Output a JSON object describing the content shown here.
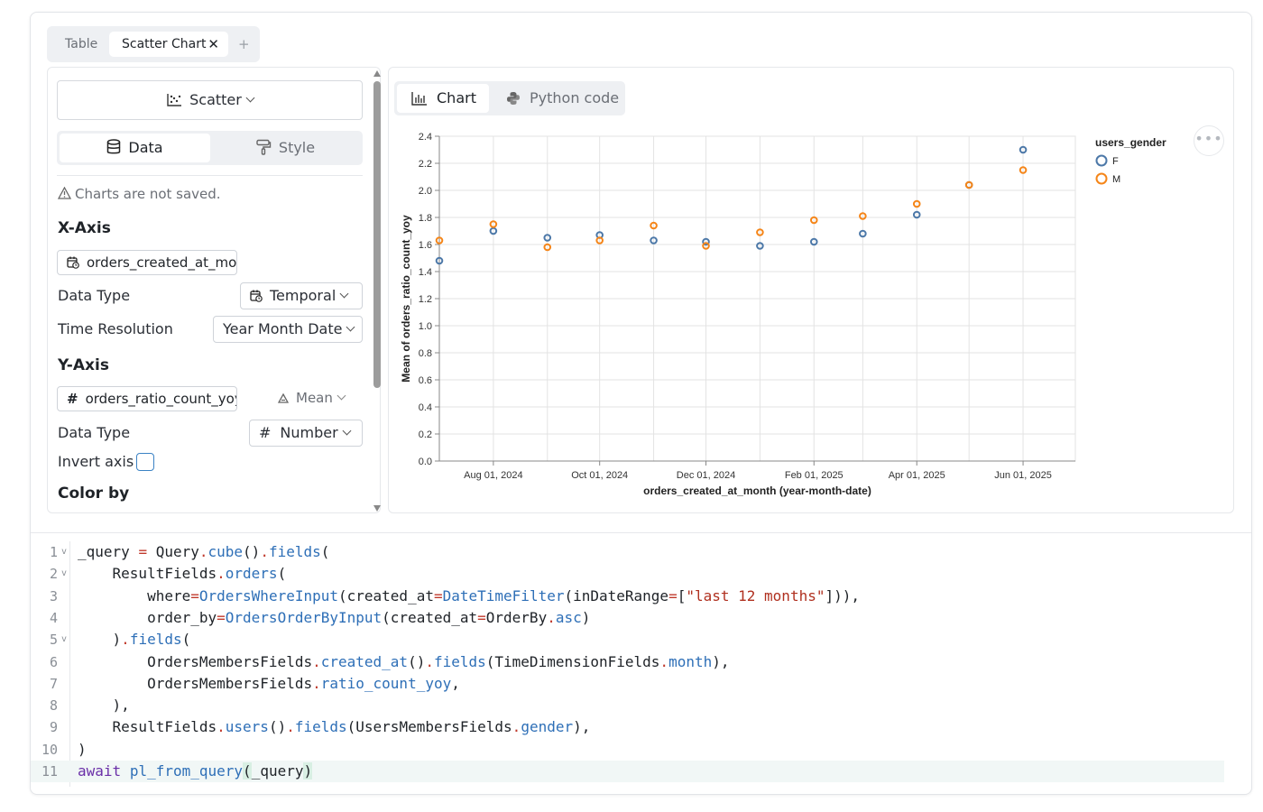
{
  "tabs": {
    "table": "Table",
    "scatter": "Scatter Chart",
    "close": "✕",
    "add": "+"
  },
  "left": {
    "chart_type": "Scatter",
    "seg_data": "Data",
    "seg_style": "Style",
    "warning": "Charts are not saved.",
    "x_axis": {
      "title": "X-Axis",
      "field": "orders_created_at_month",
      "data_type_label": "Data Type",
      "data_type": "Temporal",
      "time_res_label": "Time Resolution",
      "time_res": "Year Month Date"
    },
    "y_axis": {
      "title": "Y-Axis",
      "field": "orders_ratio_count_yoy",
      "aggregate": "Mean",
      "data_type_label": "Data Type",
      "data_type": "Number",
      "invert_label": "Invert axis"
    },
    "color_by": "Color by"
  },
  "view_tabs": {
    "chart": "Chart",
    "python": "Python code"
  },
  "more_label": "•••",
  "colors": {
    "F": "#4c78a8",
    "M": "#f58518"
  },
  "chart_data": {
    "type": "scatter",
    "xlabel": "orders_created_at_month (year-month-date)",
    "ylabel": "Mean of orders_ratio_count_yoy",
    "ylim": [
      0,
      2.4
    ],
    "yticks": [
      0.0,
      0.2,
      0.4,
      0.6,
      0.8,
      1.0,
      1.2,
      1.4,
      1.6,
      1.8,
      2.0,
      2.2,
      2.4
    ],
    "yticklabels": [
      "0.0",
      "0.2",
      "0.4",
      "0.6",
      "0.8",
      "1.0",
      "1.2",
      "1.4",
      "1.6",
      "1.8",
      "2.0",
      "2.2",
      "2.4"
    ],
    "x_range": [
      "2024-07-01",
      "2025-07-01"
    ],
    "xticks": [
      "2024-08-01",
      "2024-10-01",
      "2024-12-01",
      "2025-02-01",
      "2025-04-01",
      "2025-06-01"
    ],
    "xticklabels": [
      "Aug 01, 2024",
      "Oct 01, 2024",
      "Dec 01, 2024",
      "Feb 01, 2025",
      "Apr 01, 2025",
      "Jun 01, 2025"
    ],
    "grid": true,
    "legend": {
      "title": "users_gender",
      "placement": "right"
    },
    "series": [
      {
        "name": "F",
        "points": [
          {
            "x": "2024-07-01",
            "y": 1.48
          },
          {
            "x": "2024-08-01",
            "y": 1.7
          },
          {
            "x": "2024-09-01",
            "y": 1.65
          },
          {
            "x": "2024-10-01",
            "y": 1.67
          },
          {
            "x": "2024-11-01",
            "y": 1.63
          },
          {
            "x": "2024-12-01",
            "y": 1.62
          },
          {
            "x": "2025-01-01",
            "y": 1.59
          },
          {
            "x": "2025-02-01",
            "y": 1.62
          },
          {
            "x": "2025-03-01",
            "y": 1.68
          },
          {
            "x": "2025-04-01",
            "y": 1.82
          },
          {
            "x": "2025-05-01",
            "y": 2.04
          },
          {
            "x": "2025-06-01",
            "y": 2.3
          }
        ]
      },
      {
        "name": "M",
        "points": [
          {
            "x": "2024-07-01",
            "y": 1.63
          },
          {
            "x": "2024-08-01",
            "y": 1.75
          },
          {
            "x": "2024-09-01",
            "y": 1.58
          },
          {
            "x": "2024-10-01",
            "y": 1.63
          },
          {
            "x": "2024-11-01",
            "y": 1.74
          },
          {
            "x": "2024-12-01",
            "y": 1.59
          },
          {
            "x": "2025-01-01",
            "y": 1.69
          },
          {
            "x": "2025-02-01",
            "y": 1.78
          },
          {
            "x": "2025-03-01",
            "y": 1.81
          },
          {
            "x": "2025-04-01",
            "y": 1.9
          },
          {
            "x": "2025-05-01",
            "y": 2.04
          },
          {
            "x": "2025-06-01",
            "y": 2.15
          }
        ]
      }
    ]
  },
  "code": {
    "lines": [
      {
        "n": "1",
        "fold": true,
        "parts": [
          [
            "",
            "_query "
          ],
          [
            "op",
            "="
          ],
          [
            "",
            " Query"
          ],
          [
            "op",
            "."
          ],
          [
            "fn",
            "cube"
          ],
          [
            "",
            "()"
          ],
          [
            "op",
            "."
          ],
          [
            "fn",
            "fields"
          ],
          [
            "",
            "("
          ]
        ]
      },
      {
        "n": "2",
        "fold": true,
        "parts": [
          [
            "",
            "    ResultFields"
          ],
          [
            "op",
            "."
          ],
          [
            "fn",
            "orders"
          ],
          [
            "",
            "("
          ]
        ]
      },
      {
        "n": "3",
        "fold": false,
        "parts": [
          [
            "",
            "        where"
          ],
          [
            "op",
            "="
          ],
          [
            "fn",
            "OrdersWhereInput"
          ],
          [
            "",
            "(created_at"
          ],
          [
            "op",
            "="
          ],
          [
            "fn",
            "DateTimeFilter"
          ],
          [
            "",
            "(inDateRange"
          ],
          [
            "op",
            "="
          ],
          [
            "",
            "["
          ],
          [
            "str",
            "\"last 12 months\""
          ],
          [
            "",
            "])),"
          ]
        ]
      },
      {
        "n": "4",
        "fold": false,
        "parts": [
          [
            "",
            "        order_by"
          ],
          [
            "op",
            "="
          ],
          [
            "fn",
            "OrdersOrderByInput"
          ],
          [
            "",
            "(created_at"
          ],
          [
            "op",
            "="
          ],
          [
            "",
            "OrderBy"
          ],
          [
            "op",
            "."
          ],
          [
            "fn",
            "asc"
          ],
          [
            "",
            ")"
          ]
        ]
      },
      {
        "n": "5",
        "fold": true,
        "parts": [
          [
            "",
            "    )"
          ],
          [
            "op",
            "."
          ],
          [
            "fn",
            "fields"
          ],
          [
            "",
            "("
          ]
        ]
      },
      {
        "n": "6",
        "fold": false,
        "parts": [
          [
            "",
            "        OrdersMembersFields"
          ],
          [
            "op",
            "."
          ],
          [
            "fn",
            "created_at"
          ],
          [
            "",
            "()"
          ],
          [
            "op",
            "."
          ],
          [
            "fn",
            "fields"
          ],
          [
            "",
            "(TimeDimensionFields"
          ],
          [
            "op",
            "."
          ],
          [
            "fn",
            "month"
          ],
          [
            "",
            "),"
          ]
        ]
      },
      {
        "n": "7",
        "fold": false,
        "parts": [
          [
            "",
            "        OrdersMembersFields"
          ],
          [
            "op",
            "."
          ],
          [
            "fn",
            "ratio_count_yoy"
          ],
          [
            "",
            ","
          ]
        ]
      },
      {
        "n": "8",
        "fold": false,
        "parts": [
          [
            "",
            "    ),"
          ]
        ]
      },
      {
        "n": "9",
        "fold": false,
        "parts": [
          [
            "",
            "    ResultFields"
          ],
          [
            "op",
            "."
          ],
          [
            "fn",
            "users"
          ],
          [
            "",
            "()"
          ],
          [
            "op",
            "."
          ],
          [
            "fn",
            "fields"
          ],
          [
            "",
            "(UsersMembersFields"
          ],
          [
            "op",
            "."
          ],
          [
            "fn",
            "gender"
          ],
          [
            "",
            "),"
          ]
        ]
      },
      {
        "n": "10",
        "fold": false,
        "parts": [
          [
            "",
            ")"
          ]
        ]
      },
      {
        "n": "11",
        "fold": false,
        "active": true,
        "parts": [
          [
            "kw",
            "await"
          ],
          [
            "",
            " "
          ],
          [
            "fn",
            "pl_from_query"
          ],
          [
            "br",
            "("
          ],
          [
            "",
            "_query"
          ],
          [
            "br",
            ")"
          ]
        ]
      }
    ]
  }
}
